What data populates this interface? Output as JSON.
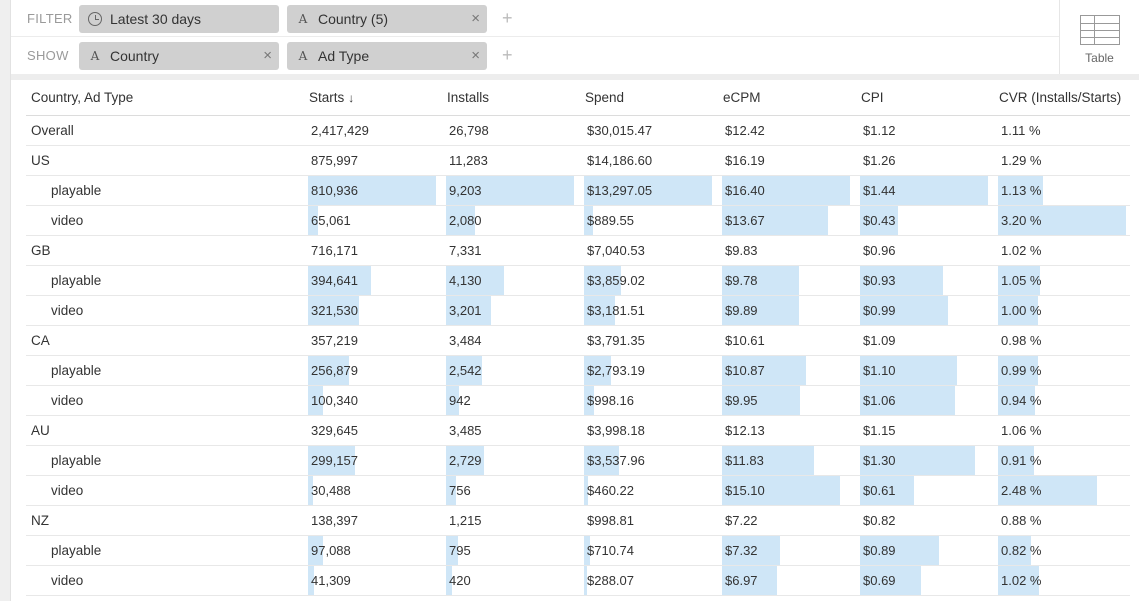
{
  "filter": {
    "label": "FILTER",
    "date_pill": "Latest 30 days",
    "country_pill": "Country (5)",
    "remove_glyph": "×",
    "add_glyph": "+"
  },
  "show": {
    "label": "SHOW",
    "dim1": "Country",
    "dim2": "Ad Type",
    "remove_glyph": "×",
    "add_glyph": "+"
  },
  "viz": {
    "label": "Table",
    "icon": "table-icon"
  },
  "colors": {
    "bar": "#cfe6f7",
    "pill": "#d0d0d0"
  },
  "table": {
    "headers": [
      "Country, Ad Type",
      "Starts",
      "Installs",
      "Spend",
      "eCPM",
      "CPI",
      "CVR (Installs/Starts)"
    ],
    "sort_arrow": "↓",
    "rows": [
      {
        "label": "Overall",
        "indent": false,
        "cells": [
          "2,417,429",
          "26,798",
          "$30,015.47",
          "$12.42",
          "$1.12",
          "1.11 %"
        ]
      },
      {
        "label": "US",
        "indent": false,
        "cells": [
          "875,997",
          "11,283",
          "$14,186.60",
          "$16.19",
          "$1.26",
          "1.29 %"
        ]
      },
      {
        "label": "playable",
        "indent": true,
        "cells": [
          "810,936",
          "9,203",
          "$13,297.05",
          "$16.40",
          "$1.44",
          "1.13 %"
        ],
        "bars": [
          1.0,
          1.0,
          1.0,
          1.0,
          1.0,
          0.35
        ]
      },
      {
        "label": "video",
        "indent": true,
        "cells": [
          "65,061",
          "2,080",
          "$889.55",
          "$13.67",
          "$0.43",
          "3.20 %"
        ],
        "bars": [
          0.08,
          0.23,
          0.07,
          0.83,
          0.3,
          1.0
        ]
      },
      {
        "label": "GB",
        "indent": false,
        "cells": [
          "716,171",
          "7,331",
          "$7,040.53",
          "$9.83",
          "$0.96",
          "1.02 %"
        ]
      },
      {
        "label": "playable",
        "indent": true,
        "cells": [
          "394,641",
          "4,130",
          "$3,859.02",
          "$9.78",
          "$0.93",
          "1.05 %"
        ],
        "bars": [
          0.49,
          0.45,
          0.29,
          0.6,
          0.65,
          0.33
        ]
      },
      {
        "label": "video",
        "indent": true,
        "cells": [
          "321,530",
          "3,201",
          "$3,181.51",
          "$9.89",
          "$0.99",
          "1.00 %"
        ],
        "bars": [
          0.4,
          0.35,
          0.24,
          0.6,
          0.69,
          0.31
        ]
      },
      {
        "label": "CA",
        "indent": false,
        "cells": [
          "357,219",
          "3,484",
          "$3,791.35",
          "$10.61",
          "$1.09",
          "0.98 %"
        ]
      },
      {
        "label": "playable",
        "indent": true,
        "cells": [
          "256,879",
          "2,542",
          "$2,793.19",
          "$10.87",
          "$1.10",
          "0.99 %"
        ],
        "bars": [
          0.32,
          0.28,
          0.21,
          0.66,
          0.76,
          0.31
        ]
      },
      {
        "label": "video",
        "indent": true,
        "cells": [
          "100,340",
          "942",
          "$998.16",
          "$9.95",
          "$1.06",
          "0.94 %"
        ],
        "bars": [
          0.12,
          0.1,
          0.08,
          0.61,
          0.74,
          0.29
        ]
      },
      {
        "label": "AU",
        "indent": false,
        "cells": [
          "329,645",
          "3,485",
          "$3,998.18",
          "$12.13",
          "$1.15",
          "1.06 %"
        ]
      },
      {
        "label": "playable",
        "indent": true,
        "cells": [
          "299,157",
          "2,729",
          "$3,537.96",
          "$11.83",
          "$1.30",
          "0.91 %"
        ],
        "bars": [
          0.37,
          0.3,
          0.27,
          0.72,
          0.9,
          0.28
        ]
      },
      {
        "label": "video",
        "indent": true,
        "cells": [
          "30,488",
          "756",
          "$460.22",
          "$15.10",
          "$0.61",
          "2.48 %"
        ],
        "bars": [
          0.04,
          0.08,
          0.03,
          0.92,
          0.42,
          0.77
        ]
      },
      {
        "label": "NZ",
        "indent": false,
        "cells": [
          "138,397",
          "1,215",
          "$998.81",
          "$7.22",
          "$0.82",
          "0.88 %"
        ]
      },
      {
        "label": "playable",
        "indent": true,
        "cells": [
          "97,088",
          "795",
          "$710.74",
          "$7.32",
          "$0.89",
          "0.82 %"
        ],
        "bars": [
          0.12,
          0.09,
          0.05,
          0.45,
          0.62,
          0.26
        ]
      },
      {
        "label": "video",
        "indent": true,
        "cells": [
          "41,309",
          "420",
          "$288.07",
          "$6.97",
          "$0.69",
          "1.02 %"
        ],
        "bars": [
          0.05,
          0.05,
          0.02,
          0.43,
          0.48,
          0.32
        ]
      }
    ]
  }
}
